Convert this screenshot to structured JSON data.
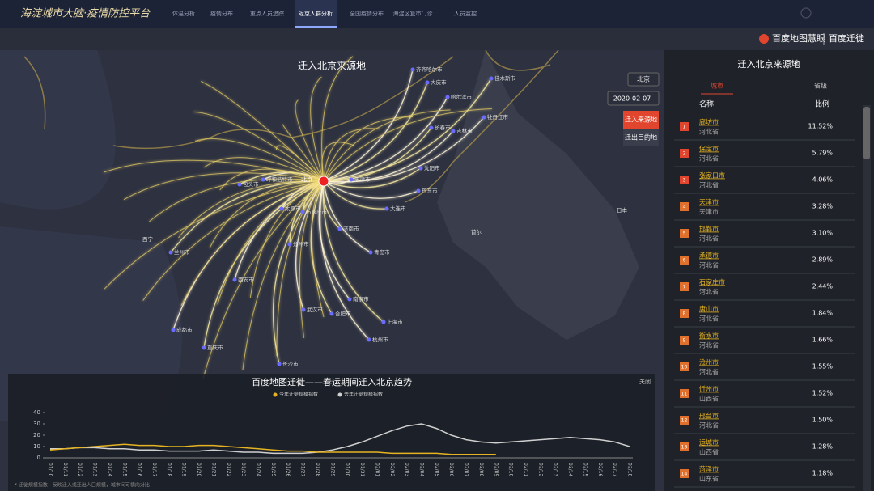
{
  "header": {
    "title": "海淀城市大脑·疫情防控平台",
    "tabs": [
      "体温分析",
      "疫情分布",
      "重点人员追踪",
      "返京人群分析",
      "全国疫情分布",
      "海淀区复市门诊",
      "人员监控"
    ],
    "active_tab": 3
  },
  "subbar": {
    "brand": "百度地图慧眼",
    "product": "百度迁徙"
  },
  "map": {
    "title": "迁入北京来源地",
    "city_select": "北京",
    "date_select": "2020-02-07",
    "buttons": [
      "迁入来源地",
      "迁出目的地"
    ],
    "origin": "北京",
    "labels": [
      "齐齐哈尔市",
      "大庆市",
      "哈尔滨市",
      "佳木斯市",
      "牡丹江市",
      "长春市",
      "吉林市",
      "沈阳市",
      "丹东市",
      "大连市",
      "呼和浩特市",
      "包头市",
      "太原市",
      "石家庄市",
      "天津市",
      "济南市",
      "青岛市",
      "郑州市",
      "西安市",
      "兰州市",
      "成都市",
      "重庆市",
      "武汉市",
      "合肥市",
      "南京市",
      "上海市",
      "杭州市",
      "长沙市",
      "日本",
      "首尔",
      "西宁"
    ]
  },
  "side_panel": {
    "title": "迁入北京来源地",
    "tabs": [
      "城市",
      "省级"
    ],
    "columns": [
      "名称",
      "比例"
    ],
    "rows": [
      {
        "rank": "1",
        "name": "廊坊市",
        "province": "河北省",
        "ratio": "11.52%"
      },
      {
        "rank": "2",
        "name": "保定市",
        "province": "河北省",
        "ratio": "5.79%"
      },
      {
        "rank": "3",
        "name": "张家口市",
        "province": "河北省",
        "ratio": "4.06%"
      },
      {
        "rank": "4",
        "name": "天津市",
        "province": "天津市",
        "ratio": "3.28%"
      },
      {
        "rank": "5",
        "name": "邯郸市",
        "province": "河北省",
        "ratio": "3.10%"
      },
      {
        "rank": "6",
        "name": "承德市",
        "province": "河北省",
        "ratio": "2.89%"
      },
      {
        "rank": "7",
        "name": "石家庄市",
        "province": "河北省",
        "ratio": "2.44%"
      },
      {
        "rank": "8",
        "name": "唐山市",
        "province": "河北省",
        "ratio": "1.84%"
      },
      {
        "rank": "9",
        "name": "衡水市",
        "province": "河北省",
        "ratio": "1.66%"
      },
      {
        "rank": "10",
        "name": "沧州市",
        "province": "河北省",
        "ratio": "1.55%"
      },
      {
        "rank": "11",
        "name": "忻州市",
        "province": "山西省",
        "ratio": "1.52%"
      },
      {
        "rank": "12",
        "name": "邢台市",
        "province": "河北省",
        "ratio": "1.50%"
      },
      {
        "rank": "13",
        "name": "运城市",
        "province": "山西省",
        "ratio": "1.28%"
      },
      {
        "rank": "14",
        "name": "菏泽市",
        "province": "山东省",
        "ratio": "1.18%"
      }
    ]
  },
  "chart_data": {
    "type": "line",
    "title": "百度地图迁徙——春运期间迁入北京趋势",
    "close": "关闭",
    "note": "* 迁徙规模指数：反映迁入或迁出人口规模，城市间可横向对比",
    "categories": [
      "01/10",
      "01/11",
      "01/12",
      "01/13",
      "01/14",
      "01/15",
      "01/16",
      "01/17",
      "01/18",
      "01/19",
      "01/20",
      "01/21",
      "01/22",
      "01/23",
      "01/24",
      "01/25",
      "01/26",
      "01/27",
      "01/28",
      "01/29",
      "01/30",
      "01/31",
      "02/01",
      "02/02",
      "02/03",
      "02/04",
      "02/05",
      "02/06",
      "02/07",
      "02/08",
      "02/09",
      "02/10",
      "02/11",
      "02/12",
      "02/13",
      "02/14",
      "02/15",
      "02/16",
      "02/17",
      "02/18"
    ],
    "series": [
      {
        "name": "今年迁徙规模指数",
        "color": "#e6b422",
        "values": [
          7,
          8,
          9,
          10,
          11,
          12,
          11,
          11,
          10,
          10,
          11,
          11,
          10,
          9,
          8,
          7,
          6,
          6,
          5,
          5,
          5,
          5,
          5,
          4,
          4,
          4,
          4,
          3,
          3,
          3,
          3,
          null,
          null,
          null,
          null,
          null,
          null,
          null,
          null,
          null
        ]
      },
      {
        "name": "去年迁徙规模指数",
        "color": "#d0d0d0",
        "values": [
          8,
          8,
          9,
          9,
          8,
          8,
          7,
          7,
          6,
          6,
          6,
          7,
          6,
          5,
          5,
          4,
          4,
          4,
          5,
          7,
          10,
          14,
          19,
          24,
          28,
          30,
          26,
          20,
          16,
          14,
          13,
          14,
          15,
          16,
          17,
          18,
          17,
          16,
          14,
          10
        ]
      }
    ],
    "ylim": [
      0,
      40
    ],
    "yticks": [
      0,
      10,
      20,
      30,
      40
    ],
    "grid": false
  }
}
